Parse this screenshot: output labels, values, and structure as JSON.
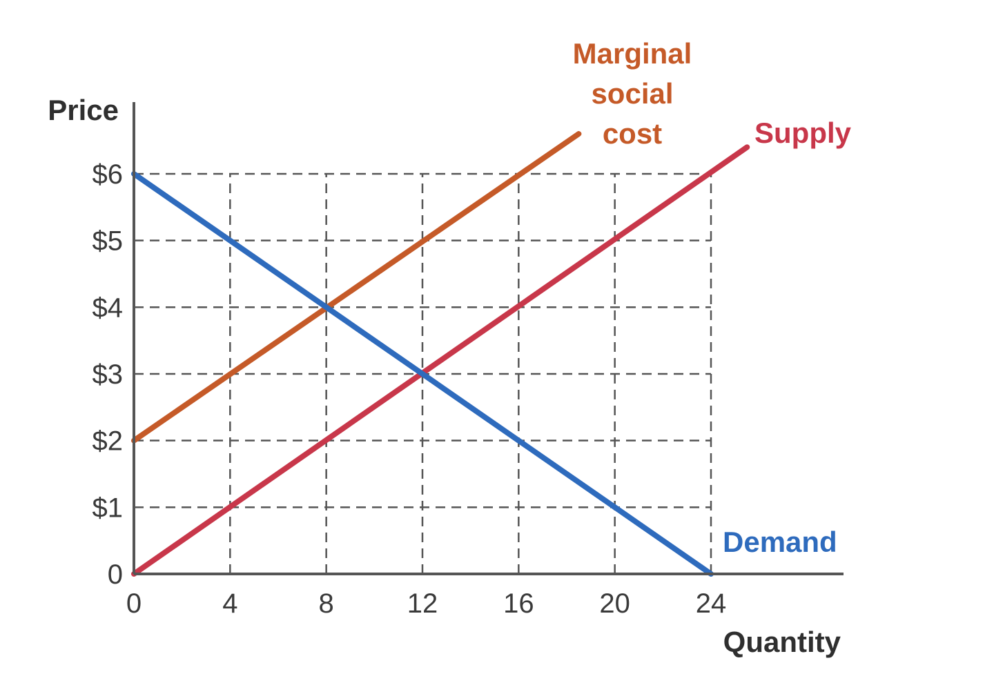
{
  "chart_data": {
    "type": "line",
    "xlabel": "Quantity",
    "ylabel": "Price",
    "xlim": [
      0,
      24
    ],
    "ylim": [
      0,
      6
    ],
    "x_ticks": [
      {
        "value": 0,
        "label": "0"
      },
      {
        "value": 4,
        "label": "4"
      },
      {
        "value": 8,
        "label": "8"
      },
      {
        "value": 12,
        "label": "12"
      },
      {
        "value": 16,
        "label": "16"
      },
      {
        "value": 20,
        "label": "20"
      },
      {
        "value": 24,
        "label": "24"
      }
    ],
    "y_ticks": [
      {
        "value": 0,
        "label": "0"
      },
      {
        "value": 1,
        "label": "$1"
      },
      {
        "value": 2,
        "label": "$2"
      },
      {
        "value": 3,
        "label": "$3"
      },
      {
        "value": 4,
        "label": "$4"
      },
      {
        "value": 5,
        "label": "$5"
      },
      {
        "value": 6,
        "label": "$6"
      }
    ],
    "grid": "dashed",
    "series": [
      {
        "name": "Marginal social cost",
        "label_lines": [
          "Marginal",
          "social",
          "cost"
        ],
        "color": "#c55a28",
        "points": [
          [
            0,
            2
          ],
          [
            18.5,
            6.6
          ]
        ]
      },
      {
        "name": "Supply",
        "label_lines": [
          "Supply"
        ],
        "color": "#c8374a",
        "points": [
          [
            0,
            0
          ],
          [
            25.5,
            6.4
          ]
        ]
      },
      {
        "name": "Demand",
        "label_lines": [
          "Demand"
        ],
        "color": "#2e6bbd",
        "points": [
          [
            0,
            6
          ],
          [
            24,
            0
          ]
        ]
      }
    ]
  }
}
